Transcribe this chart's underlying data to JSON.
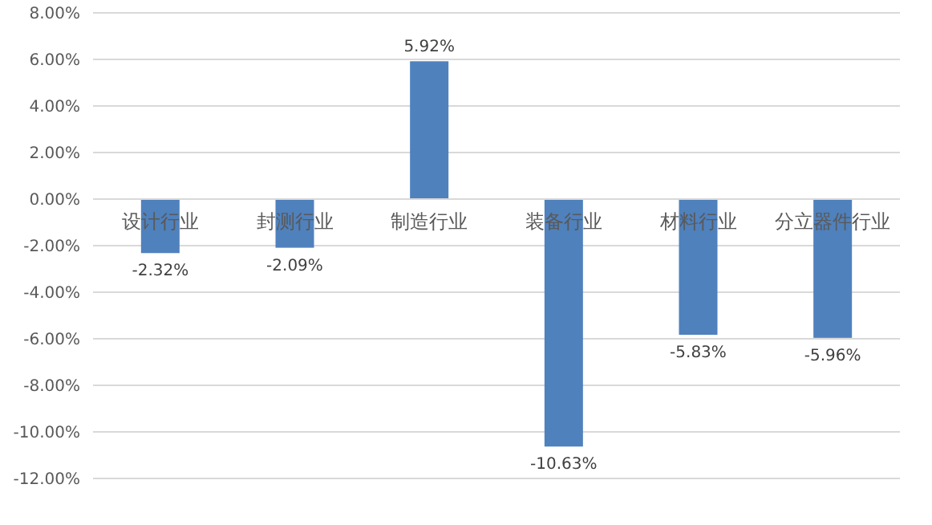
{
  "chart_data": {
    "type": "bar",
    "categories": [
      "设计行业",
      "封测行业",
      "制造行业",
      "装备行业",
      "材料行业",
      "分立器件行业"
    ],
    "values": [
      -2.32,
      -2.09,
      5.92,
      -10.63,
      -5.83,
      -5.96
    ],
    "value_labels": [
      "-2.32%",
      "-2.09%",
      "5.92%",
      "-10.63%",
      "-5.83%",
      "-5.96%"
    ],
    "color": "#4f81bd",
    "ylim": [
      -12,
      8
    ],
    "yticks": [
      {
        "value": -12,
        "label": "-12.00%"
      },
      {
        "value": -10,
        "label": "-10.00%"
      },
      {
        "value": -8,
        "label": "-8.00%"
      },
      {
        "value": -6,
        "label": "-6.00%"
      },
      {
        "value": -4,
        "label": "-4.00%"
      },
      {
        "value": -2,
        "label": "-2.00%"
      },
      {
        "value": 0,
        "label": "0.00%"
      },
      {
        "value": 2,
        "label": "2.00%"
      },
      {
        "value": 4,
        "label": "4.00%"
      },
      {
        "value": 6,
        "label": "6.00%"
      },
      {
        "value": 8,
        "label": "8.00%"
      }
    ],
    "grid": "y"
  }
}
